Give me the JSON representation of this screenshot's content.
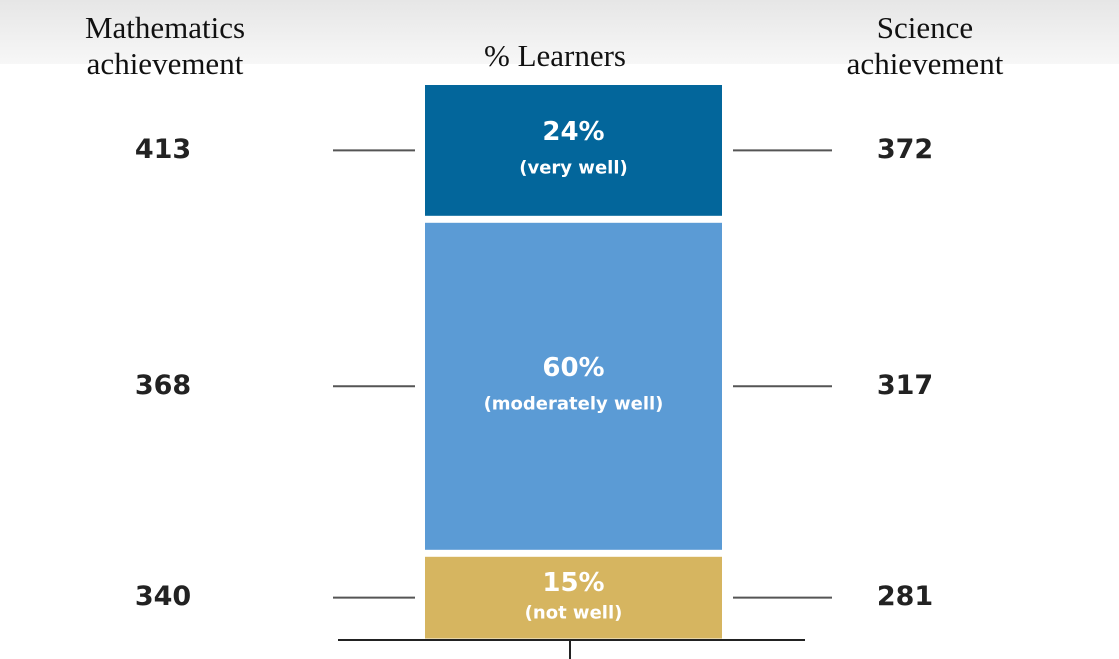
{
  "chart_data": {
    "type": "stacked_bar",
    "left_title": "Mathematics achievement",
    "center_title": "% Learners",
    "right_title": "Science achievement",
    "categories": [
      "(very well)",
      "(moderately well)",
      "(not well)"
    ],
    "values": [
      24,
      60,
      15
    ],
    "value_labels": [
      "24%",
      "60%",
      "15%"
    ],
    "colors": [
      "#03669b",
      "#5b9bd5",
      "#d6b560"
    ],
    "math_scores": [
      413,
      368,
      340
    ],
    "science_scores": [
      372,
      317,
      281
    ]
  }
}
